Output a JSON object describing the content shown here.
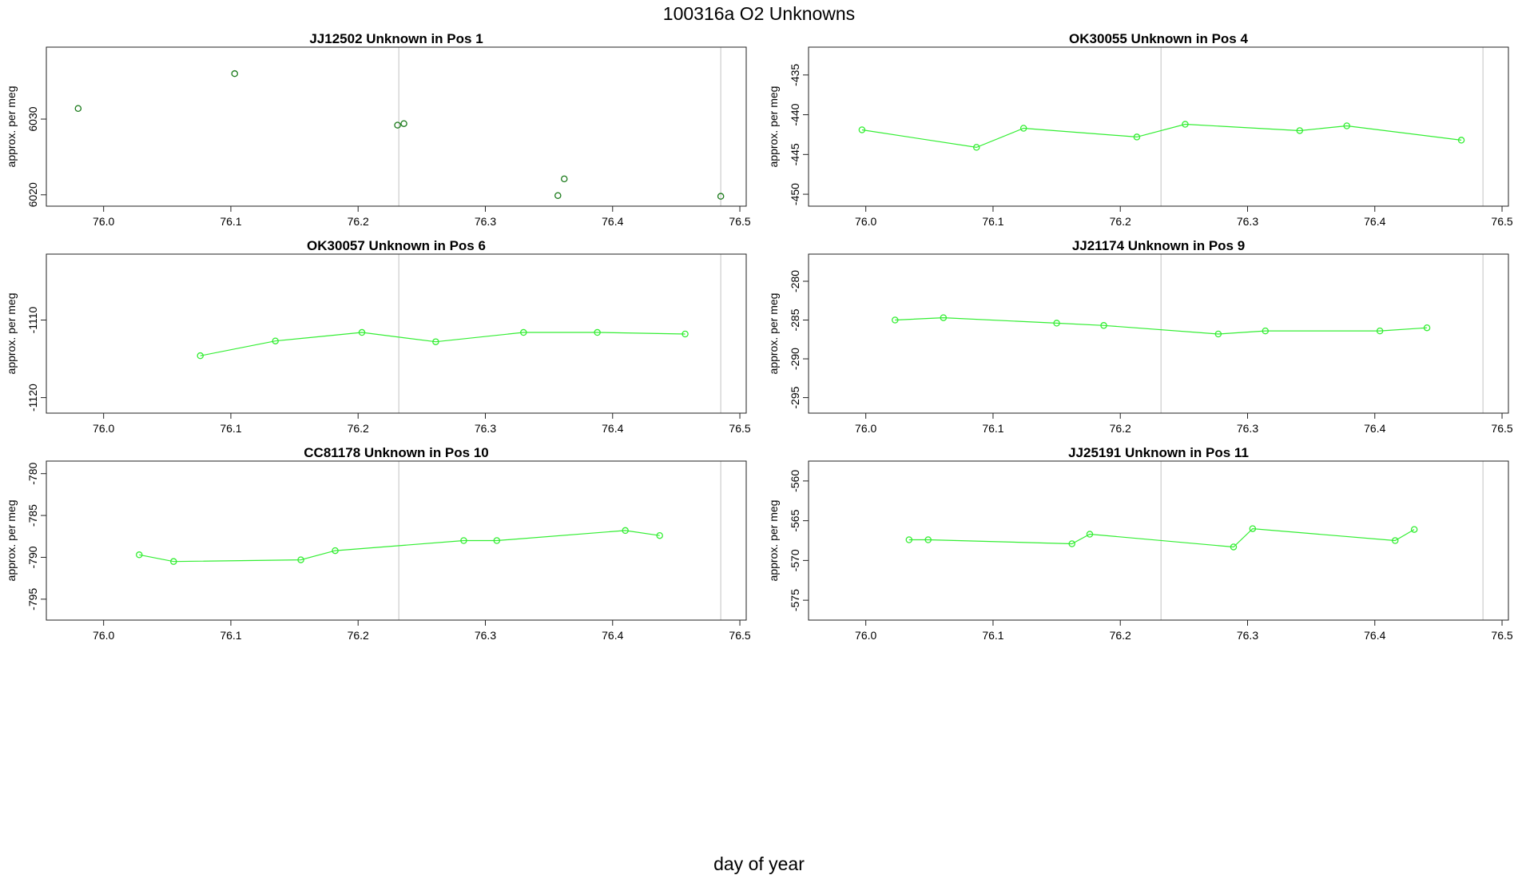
{
  "title": "100316a  O2 Unknowns",
  "xlabel": "day of year",
  "chart_data": [
    {
      "type": "scatter",
      "title": "JJ12502    Unknown in Pos 1",
      "ylabel": "approx. per meg",
      "xlim": [
        75.955,
        76.505
      ],
      "ylim": [
        6018.5,
        6039.5
      ],
      "x_ticks": [
        "76.0",
        "76.1",
        "76.2",
        "76.3",
        "76.4",
        "76.5"
      ],
      "y_ticks": [
        "6020",
        "6030"
      ],
      "vlines": [
        76.232,
        76.485
      ],
      "color": "#1a7a1a",
      "series": [
        {
          "x": [
            75.98,
            76.103,
            76.231,
            76.236,
            76.357,
            76.362,
            76.485
          ],
          "y": [
            6031.4,
            6036.0,
            6029.2,
            6029.4,
            6019.9,
            6022.1,
            6019.8
          ]
        }
      ]
    },
    {
      "type": "line",
      "title": "OK30055    Unknown in Pos 4",
      "ylabel": "approx. per meg",
      "xlim": [
        75.955,
        76.505
      ],
      "ylim": [
        -451.5,
        -431.5
      ],
      "x_ticks": [
        "76.0",
        "76.1",
        "76.2",
        "76.3",
        "76.4",
        "76.5"
      ],
      "y_ticks": [
        "-435",
        "-440",
        "-445",
        "-450"
      ],
      "vlines": [
        76.232,
        76.485
      ],
      "color": "#33ee33",
      "series": [
        {
          "x": [
            75.997,
            76.087,
            76.124,
            76.213,
            76.251,
            76.341,
            76.378,
            76.468
          ],
          "y": [
            -441.9,
            -444.1,
            -441.7,
            -442.8,
            -441.2,
            -442.0,
            -441.4,
            -443.2
          ]
        }
      ]
    },
    {
      "type": "line",
      "title": "OK30057    Unknown in Pos 6",
      "ylabel": "approx. per meg",
      "xlim": [
        75.955,
        76.505
      ],
      "ylim": [
        -1122,
        -1101.5
      ],
      "x_ticks": [
        "76.0",
        "76.1",
        "76.2",
        "76.3",
        "76.4",
        "76.5"
      ],
      "y_ticks": [
        "-1110",
        "-1120"
      ],
      "vlines": [
        76.232,
        76.485
      ],
      "color": "#33ee33",
      "series": [
        {
          "x": [
            76.076,
            76.135,
            76.203,
            76.261,
            76.33,
            76.388,
            76.457
          ],
          "y": [
            -1114.6,
            -1112.7,
            -1111.6,
            -1112.8,
            -1111.6,
            -1111.6,
            -1111.8
          ]
        }
      ]
    },
    {
      "type": "line",
      "title": "JJ21174    Unknown in Pos 9",
      "ylabel": "approx. per meg",
      "xlim": [
        75.955,
        76.505
      ],
      "ylim": [
        -297,
        -276.5
      ],
      "x_ticks": [
        "76.0",
        "76.1",
        "76.2",
        "76.3",
        "76.4",
        "76.5"
      ],
      "y_ticks": [
        "-280",
        "-285",
        "-290",
        "-295"
      ],
      "vlines": [
        76.232,
        76.485
      ],
      "color": "#33ee33",
      "series": [
        {
          "x": [
            76.023,
            76.061,
            76.15,
            76.187,
            76.277,
            76.314,
            76.404,
            76.441
          ],
          "y": [
            -285.0,
            -284.7,
            -285.4,
            -285.7,
            -286.8,
            -286.4,
            -286.4,
            -286.0
          ]
        }
      ]
    },
    {
      "type": "line",
      "title": "CC81178    Unknown in Pos 10",
      "ylabel": "approx. per meg",
      "xlim": [
        75.955,
        76.505
      ],
      "ylim": [
        -797.5,
        -778.5
      ],
      "x_ticks": [
        "76.0",
        "76.1",
        "76.2",
        "76.3",
        "76.4",
        "76.5"
      ],
      "y_ticks": [
        "-780",
        "-785",
        "-790",
        "-795"
      ],
      "vlines": [
        76.232,
        76.485
      ],
      "color": "#33ee33",
      "series": [
        {
          "x": [
            76.028,
            76.055,
            76.155,
            76.182,
            76.283,
            76.309,
            76.41,
            76.437
          ],
          "y": [
            -789.7,
            -790.5,
            -790.3,
            -789.2,
            -788.0,
            -788.0,
            -786.8,
            -787.4
          ]
        }
      ]
    },
    {
      "type": "line",
      "title": "JJ25191    Unknown in Pos 11",
      "ylabel": "approx. per meg",
      "xlim": [
        75.955,
        76.505
      ],
      "ylim": [
        -577.5,
        -557.5
      ],
      "x_ticks": [
        "76.0",
        "76.1",
        "76.2",
        "76.3",
        "76.4",
        "76.5"
      ],
      "y_ticks": [
        "-560",
        "-565",
        "-570",
        "-575"
      ],
      "vlines": [
        76.232,
        76.485
      ],
      "color": "#33ee33",
      "series": [
        {
          "x": [
            76.034,
            76.049,
            76.162,
            76.176,
            76.289,
            76.304,
            76.416,
            76.431
          ],
          "y": [
            -567.4,
            -567.4,
            -567.9,
            -566.7,
            -568.3,
            -566.0,
            -567.5,
            -566.1
          ]
        }
      ]
    }
  ]
}
